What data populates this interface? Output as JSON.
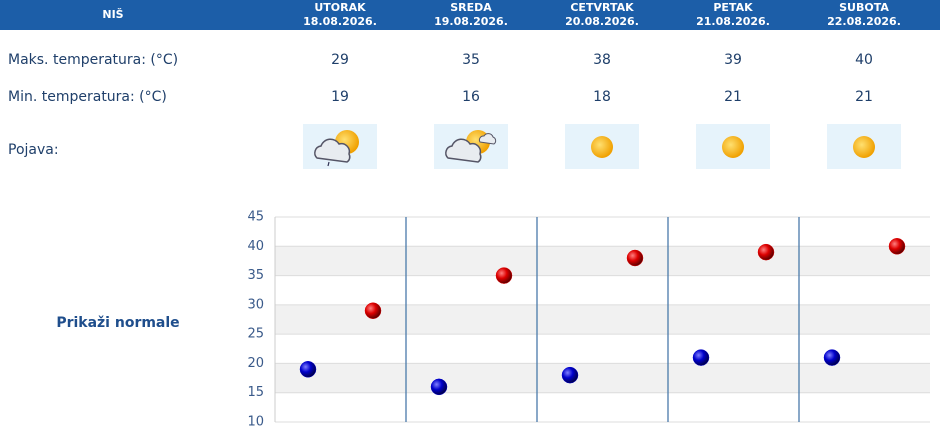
{
  "header": {
    "city": "NIŠ",
    "days": [
      {
        "name": "UTORAK",
        "date": "18.08.2026."
      },
      {
        "name": "SREDA",
        "date": "19.08.2026."
      },
      {
        "name": "CETVRTAK",
        "date": "20.08.2026."
      },
      {
        "name": "PETAK",
        "date": "21.08.2026."
      },
      {
        "name": "SUBOTA",
        "date": "22.08.2026."
      }
    ]
  },
  "table": {
    "max_label": "Maks. temperatura: (°C)",
    "min_label": "Min. temperatura: (°C)",
    "icon_label": "Pojava:",
    "max": [
      29,
      35,
      38,
      39,
      40
    ],
    "min": [
      19,
      16,
      18,
      21,
      21
    ]
  },
  "link": "Prikaži normale",
  "chart": {
    "ylim": [
      10,
      45
    ],
    "yticks": [
      10,
      15,
      20,
      25,
      30,
      35,
      40,
      45
    ],
    "max_color": "#dd0000",
    "min_color": "#0000cc"
  }
}
